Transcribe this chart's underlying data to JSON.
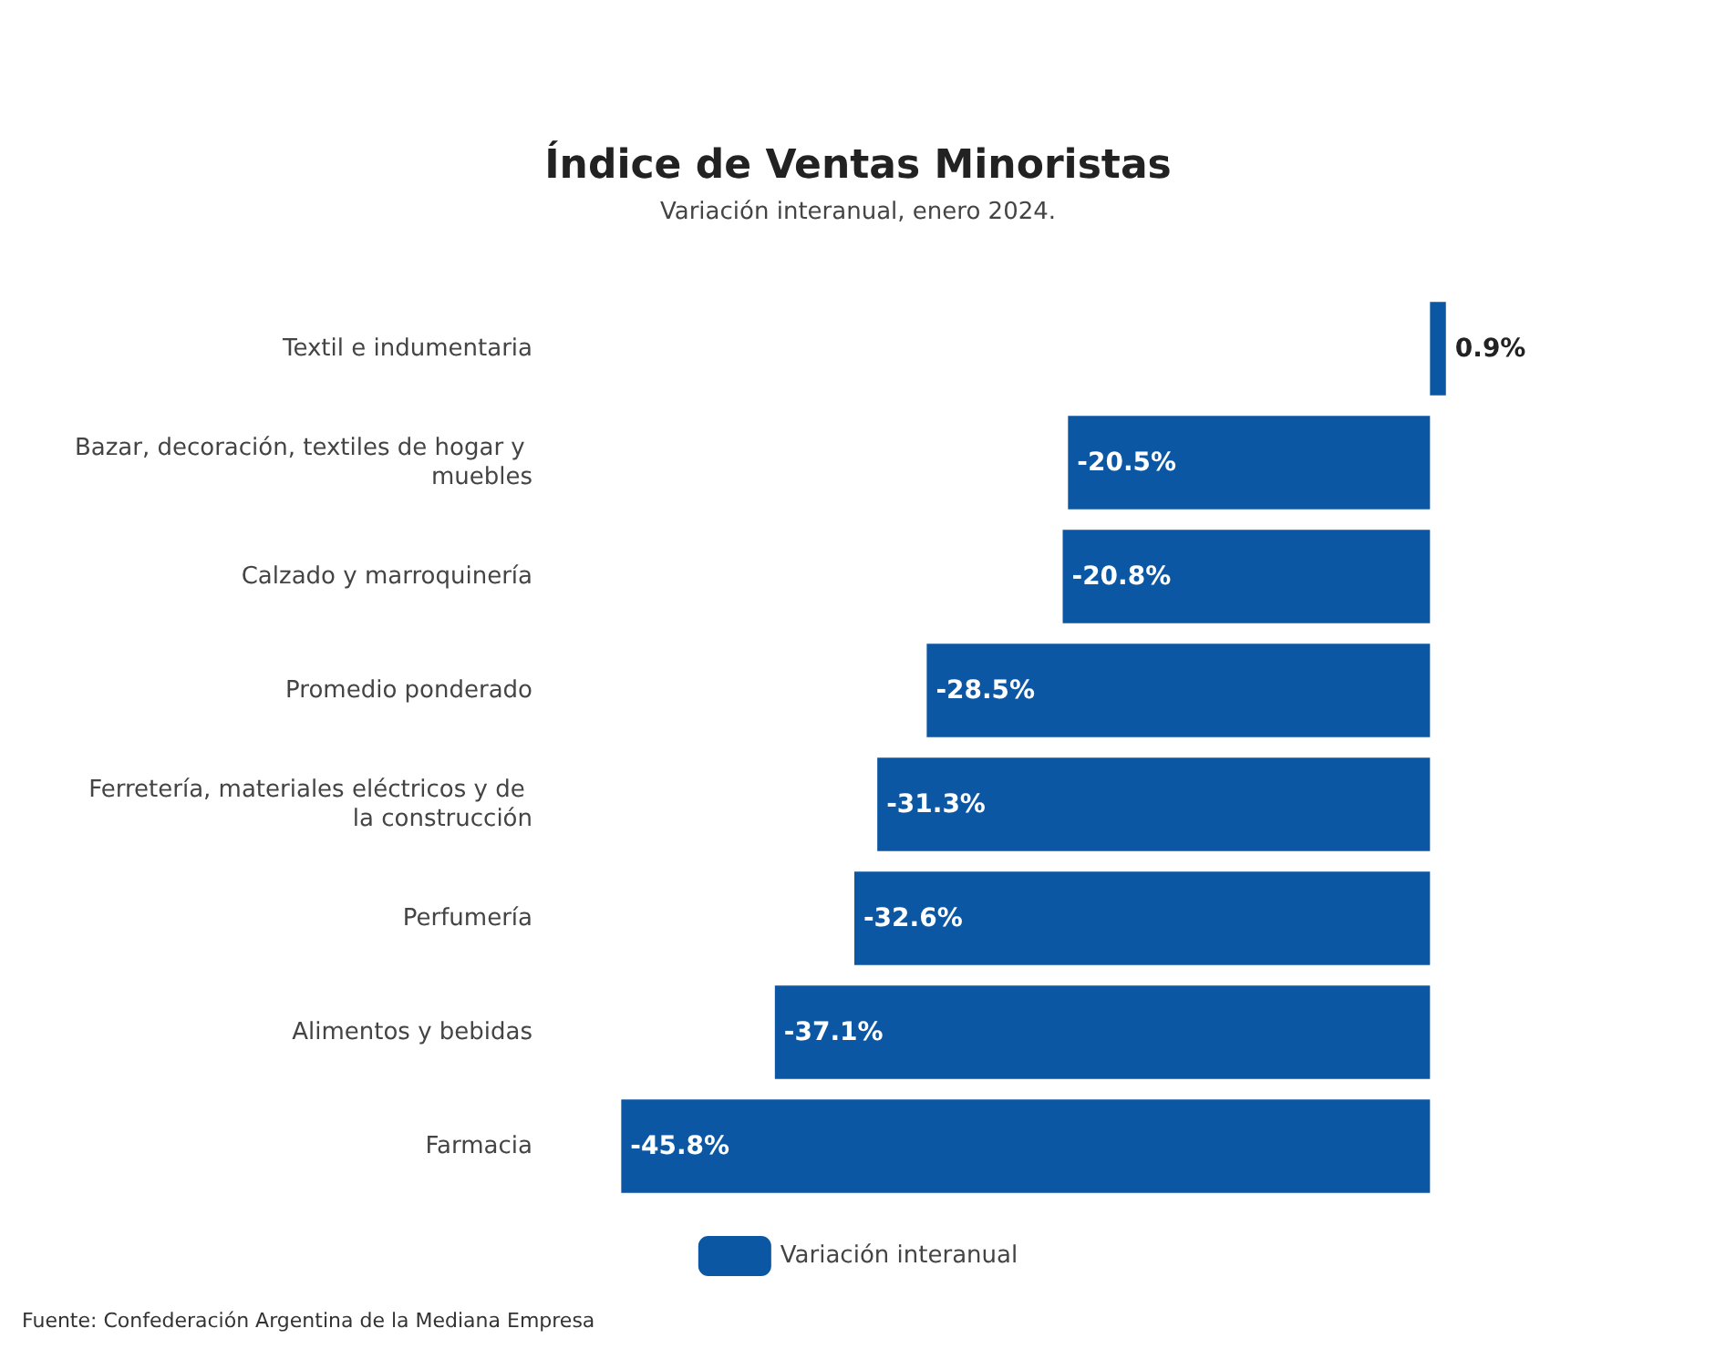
{
  "chart_data": {
    "type": "bar",
    "orientation": "horizontal",
    "title": "Índice de Ventas Minoristas",
    "subtitle": "Variación interanual, enero 2024.",
    "categories": [
      "Textil e indumentaria",
      "Bazar, decoración, textiles de hogar y muebles",
      "Calzado y marroquinería",
      "Promedio ponderado",
      "Ferretería, materiales eléctricos y de la construcción",
      "Perfumería",
      "Alimentos y bebidas",
      "Farmacia"
    ],
    "series": [
      {
        "name": "Variación interanual",
        "color": "#0b57a4",
        "values": [
          0.9,
          -20.5,
          -20.8,
          -28.5,
          -31.3,
          -32.6,
          -37.1,
          -45.8
        ],
        "value_labels": [
          "0.9%",
          "-20.5%",
          "-20.8%",
          "-28.5%",
          "-31.3%",
          "-32.6%",
          "-37.1%",
          "-45.8%"
        ]
      }
    ],
    "legend": "bottom",
    "annotations": [
      "Fuente: Confederación Argentina de la Mediana Empresa"
    ]
  }
}
